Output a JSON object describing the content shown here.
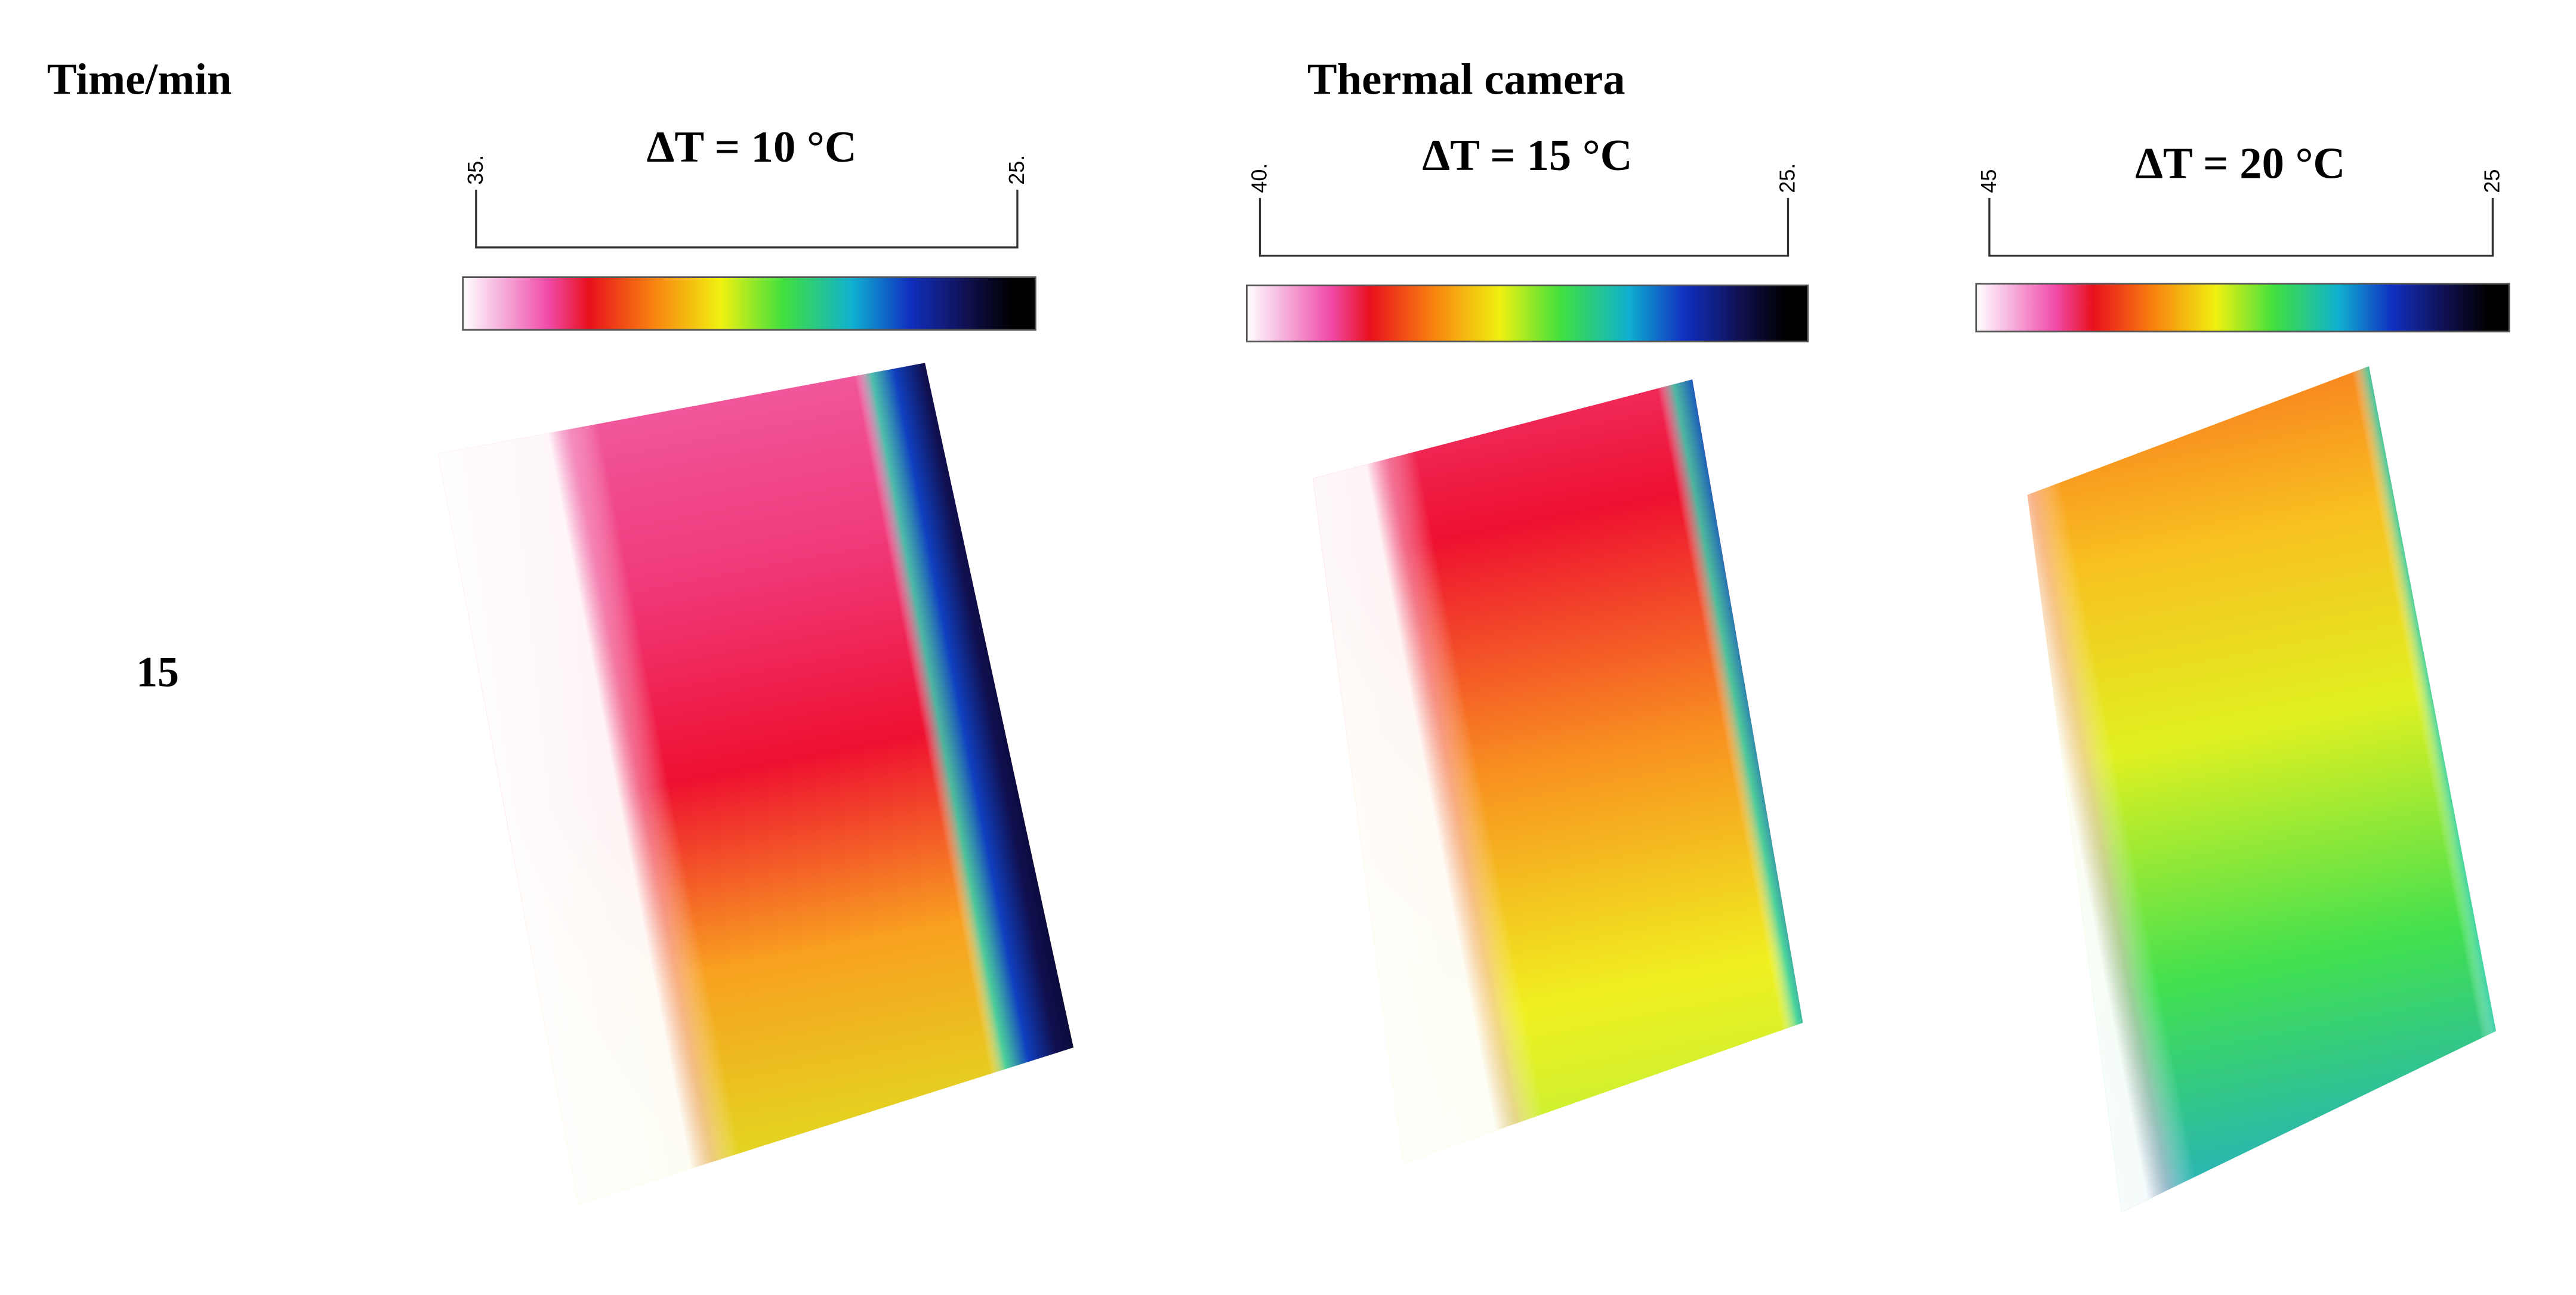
{
  "header": {
    "row_label": "Time/min",
    "column_label": "Thermal camera"
  },
  "rows": [
    {
      "time": "15"
    }
  ],
  "panels": [
    {
      "title": "ΔT = 10 °C",
      "scale_max": "35.",
      "scale_min": "25."
    },
    {
      "title": "ΔT = 15 °C",
      "scale_max": "40.",
      "scale_min": "25."
    },
    {
      "title": "ΔT = 20 °C",
      "scale_max": "45",
      "scale_min": "25"
    }
  ]
}
